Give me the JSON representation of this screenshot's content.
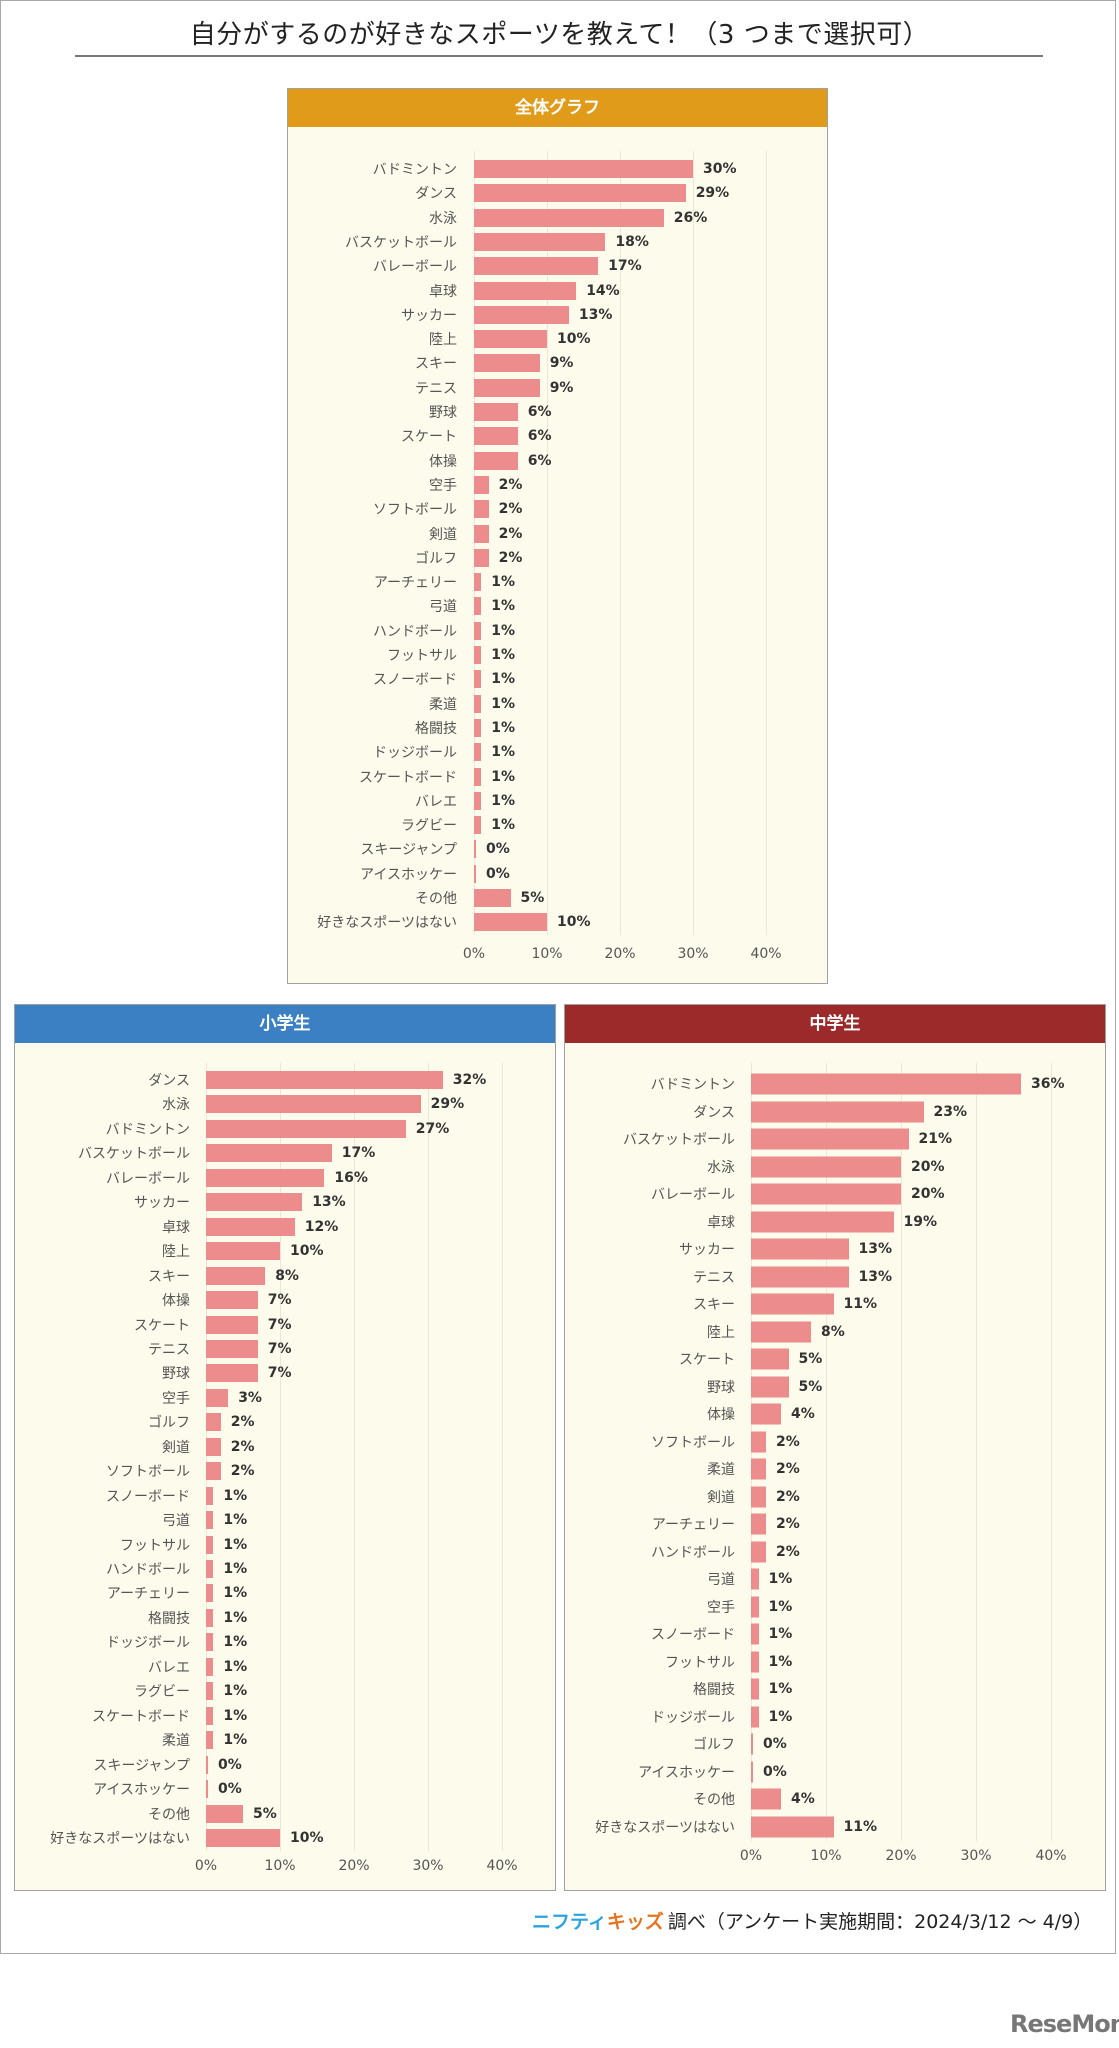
{
  "title": "自分がするのが好きなスポーツを教えて！（3 つまで選択可）",
  "footer": {
    "logo_part1": "ニフティ",
    "logo_part2": "キッズ",
    "text": "調べ（アンケート実施期間：2024/3/12 ～ 4/9）"
  },
  "watermark": "ReseMom",
  "colors": {
    "bar": "#ec8c8c",
    "overall_header": "#e09b1a",
    "elementary_header": "#3a80c3",
    "junior_high_header": "#9c2a2a",
    "panel_bg": "#fdfbec"
  },
  "chart_data": [
    {
      "type": "bar",
      "orientation": "horizontal",
      "title": "全体グラフ",
      "xlim": [
        0,
        40
      ],
      "xticks": [
        "0%",
        "10%",
        "20%",
        "30%",
        "40%"
      ],
      "grid": true,
      "categories": [
        "バドミントン",
        "ダンス",
        "水泳",
        "バスケットボール",
        "バレーボール",
        "卓球",
        "サッカー",
        "陸上",
        "スキー",
        "テニス",
        "野球",
        "スケート",
        "体操",
        "空手",
        "ソフトボール",
        "剣道",
        "ゴルフ",
        "アーチェリー",
        "弓道",
        "ハンドボール",
        "フットサル",
        "スノーボード",
        "柔道",
        "格闘技",
        "ドッジボール",
        "スケートボード",
        "バレエ",
        "ラグビー",
        "スキージャンプ",
        "アイスホッケー",
        "その他",
        "好きなスポーツはない"
      ],
      "values": [
        30,
        29,
        26,
        18,
        17,
        14,
        13,
        10,
        9,
        9,
        6,
        6,
        6,
        2,
        2,
        2,
        2,
        1,
        1,
        1,
        1,
        1,
        1,
        1,
        1,
        1,
        1,
        1,
        0,
        0,
        5,
        10
      ]
    },
    {
      "type": "bar",
      "orientation": "horizontal",
      "title": "小学生",
      "xlim": [
        0,
        40
      ],
      "xticks": [
        "0%",
        "10%",
        "20%",
        "30%",
        "40%"
      ],
      "grid": true,
      "categories": [
        "ダンス",
        "水泳",
        "バドミントン",
        "バスケットボール",
        "バレーボール",
        "サッカー",
        "卓球",
        "陸上",
        "スキー",
        "体操",
        "スケート",
        "テニス",
        "野球",
        "空手",
        "ゴルフ",
        "剣道",
        "ソフトボール",
        "スノーボード",
        "弓道",
        "フットサル",
        "ハンドボール",
        "アーチェリー",
        "格闘技",
        "ドッジボール",
        "バレエ",
        "ラグビー",
        "スケートボード",
        "柔道",
        "スキージャンプ",
        "アイスホッケー",
        "その他",
        "好きなスポーツはない"
      ],
      "values": [
        32,
        29,
        27,
        17,
        16,
        13,
        12,
        10,
        8,
        7,
        7,
        7,
        7,
        3,
        2,
        2,
        2,
        1,
        1,
        1,
        1,
        1,
        1,
        1,
        1,
        1,
        1,
        1,
        0,
        0,
        5,
        10
      ]
    },
    {
      "type": "bar",
      "orientation": "horizontal",
      "title": "中学生",
      "xlim": [
        0,
        40
      ],
      "xticks": [
        "0%",
        "10%",
        "20%",
        "30%",
        "40%"
      ],
      "grid": true,
      "categories": [
        "バドミントン",
        "ダンス",
        "バスケットボール",
        "水泳",
        "バレーボール",
        "卓球",
        "サッカー",
        "テニス",
        "スキー",
        "陸上",
        "スケート",
        "野球",
        "体操",
        "ソフトボール",
        "柔道",
        "剣道",
        "アーチェリー",
        "ハンドボール",
        "弓道",
        "空手",
        "スノーボード",
        "フットサル",
        "格闘技",
        "ドッジボール",
        "ゴルフ",
        "アイスホッケー",
        "その他",
        "好きなスポーツはない"
      ],
      "values": [
        36,
        23,
        21,
        20,
        20,
        19,
        13,
        13,
        11,
        8,
        5,
        5,
        4,
        2,
        2,
        2,
        2,
        2,
        1,
        1,
        1,
        1,
        1,
        1,
        0,
        0,
        4,
        11
      ]
    }
  ]
}
